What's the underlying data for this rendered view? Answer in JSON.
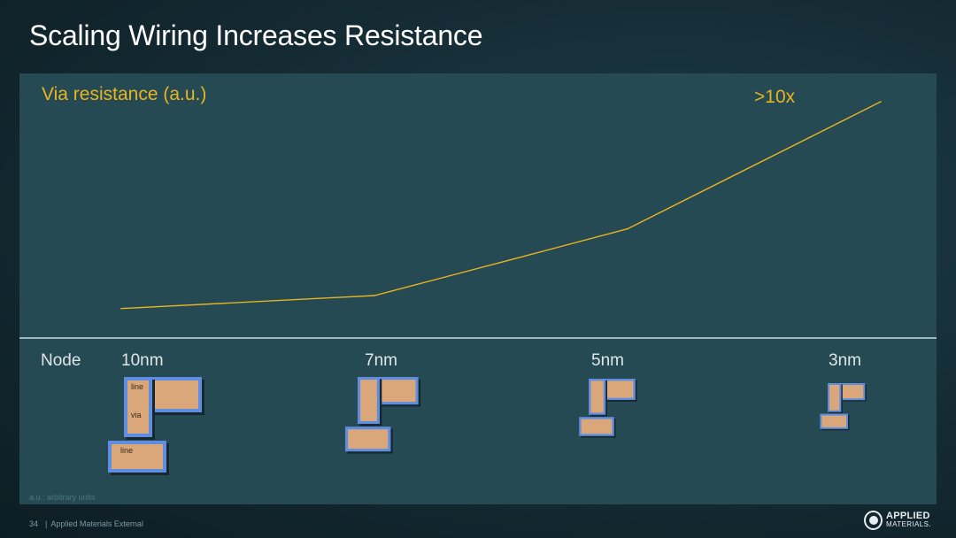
{
  "slide": {
    "title": "Scaling Wiring Increases Resistance",
    "footnote": "a.u.: arbitrary units",
    "page_number": "34",
    "footer_text": "Applied Materials External",
    "logo": {
      "line1": "APPLIED",
      "line2": "MATERIALS."
    }
  },
  "colors": {
    "line": "#e8b420",
    "copper": "#d9a77a",
    "liner": "#5f8de0",
    "panel": "#254a53"
  },
  "chart_data": {
    "type": "line",
    "ylabel": "Via resistance (a.u.)",
    "xlabel": "Node",
    "categories": [
      "10nm",
      "7nm",
      "5nm",
      "3nm"
    ],
    "x": [
      0,
      1,
      1.55,
      2,
      3
    ],
    "y": [
      1,
      1.6,
      3.3,
      4.7,
      10.6
    ],
    "ylim": [
      0,
      11.5
    ],
    "grid": false,
    "legend": "none",
    "annotation": ">10x",
    "structure_labels": [
      "line",
      "via",
      "line"
    ]
  }
}
